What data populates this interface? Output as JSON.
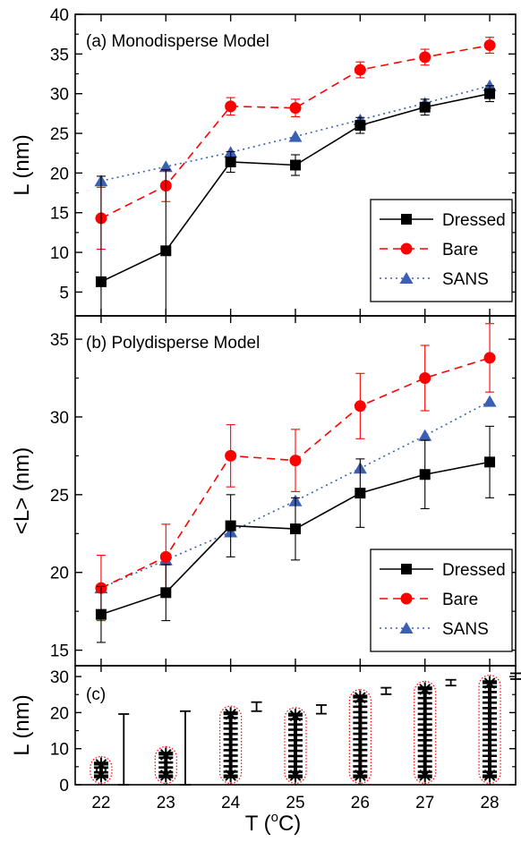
{
  "figure": {
    "xlabel_prefix": "T (",
    "xlabel_sup": "o",
    "xlabel_suffix": "C)"
  },
  "chart_data": [
    {
      "type": "line",
      "panel_label": "(a) Monodisperse Model",
      "ylabel": "L (nm)",
      "xlabel": "T (oC)",
      "xlim": [
        21.6,
        28.4
      ],
      "ylim": [
        2,
        40
      ],
      "yticks": [
        5,
        10,
        15,
        20,
        25,
        30,
        35,
        40
      ],
      "x": [
        22,
        23,
        24,
        25,
        26,
        27,
        28
      ],
      "legend_position": "bottom-right",
      "series": [
        {
          "name": "Dressed",
          "color": "#000000",
          "marker": "square",
          "line": "solid",
          "values": [
            6.3,
            10.2,
            21.4,
            21.0,
            26.0,
            28.3,
            30.0
          ],
          "errors": [
            13.3,
            10.2,
            1.3,
            1.3,
            1.0,
            1.0,
            1.0
          ]
        },
        {
          "name": "Bare",
          "color": "#ff0000",
          "marker": "circle",
          "line": "dashed",
          "values": [
            14.3,
            18.4,
            28.4,
            28.2,
            33.0,
            34.6,
            36.1
          ],
          "errors": [
            3.9,
            2.0,
            1.1,
            1.1,
            1.0,
            1.0,
            1.0
          ]
        },
        {
          "name": "SANS",
          "color": "#3b5fb5",
          "marker": "triangle",
          "line": "dotted",
          "values": [
            19.0,
            20.8,
            22.6,
            24.6,
            26.7,
            28.8,
            31.0
          ]
        }
      ]
    },
    {
      "type": "line",
      "panel_label": "(b) Polydisperse Model",
      "ylabel": "<L> (nm)",
      "xlabel": "T (oC)",
      "xlim": [
        21.6,
        28.4
      ],
      "ylim": [
        14,
        36.5
      ],
      "yticks": [
        15,
        20,
        25,
        30,
        35
      ],
      "x": [
        22,
        23,
        24,
        25,
        26,
        27,
        28
      ],
      "legend_position": "bottom-right",
      "series": [
        {
          "name": "Dressed",
          "color": "#000000",
          "marker": "square",
          "line": "solid",
          "values": [
            17.3,
            18.7,
            23.0,
            22.8,
            25.1,
            26.3,
            27.1
          ],
          "errors": [
            1.8,
            1.8,
            2.0,
            2.0,
            2.2,
            2.2,
            2.3
          ]
        },
        {
          "name": "Bare",
          "color": "#ff0000",
          "marker": "circle",
          "line": "dashed",
          "values": [
            19.0,
            21.0,
            27.5,
            27.2,
            30.7,
            32.5,
            33.8
          ],
          "errors": [
            2.1,
            2.1,
            2.0,
            2.0,
            2.1,
            2.1,
            2.2
          ]
        },
        {
          "name": "SANS",
          "color": "#3b5fb5",
          "marker": "triangle",
          "line": "dotted",
          "values": [
            19.0,
            20.8,
            22.6,
            24.6,
            26.7,
            28.8,
            31.0
          ]
        }
      ]
    },
    {
      "type": "scatter",
      "panel_label": "(c)",
      "ylabel": "L (nm)",
      "xlabel": "T (oC)",
      "xlim": [
        21.6,
        28.4
      ],
      "ylim": [
        0,
        33
      ],
      "yticks": [
        0,
        10,
        20,
        30
      ],
      "xticks": [
        22,
        23,
        24,
        25,
        26,
        27,
        28
      ],
      "x": [
        22,
        23,
        24,
        25,
        26,
        27,
        28
      ],
      "micelle_lengths": [
        6.3,
        10.2,
        21.4,
        21.0,
        26.0,
        28.3,
        30.0
      ],
      "range_bars": [
        {
          "x": 22.35,
          "low": 0,
          "high": 19.6
        },
        {
          "x": 23.3,
          "low": 0,
          "high": 20.4
        },
        {
          "x": 24.4,
          "low": 20.4,
          "high": 22.9
        },
        {
          "x": 25.4,
          "low": 19.7,
          "high": 22.1
        },
        {
          "x": 26.4,
          "low": 25.1,
          "high": 26.9
        },
        {
          "x": 27.4,
          "low": 27.5,
          "high": 29.1
        },
        {
          "x": 28.4,
          "low": 29.3,
          "high": 30.9
        }
      ]
    }
  ]
}
